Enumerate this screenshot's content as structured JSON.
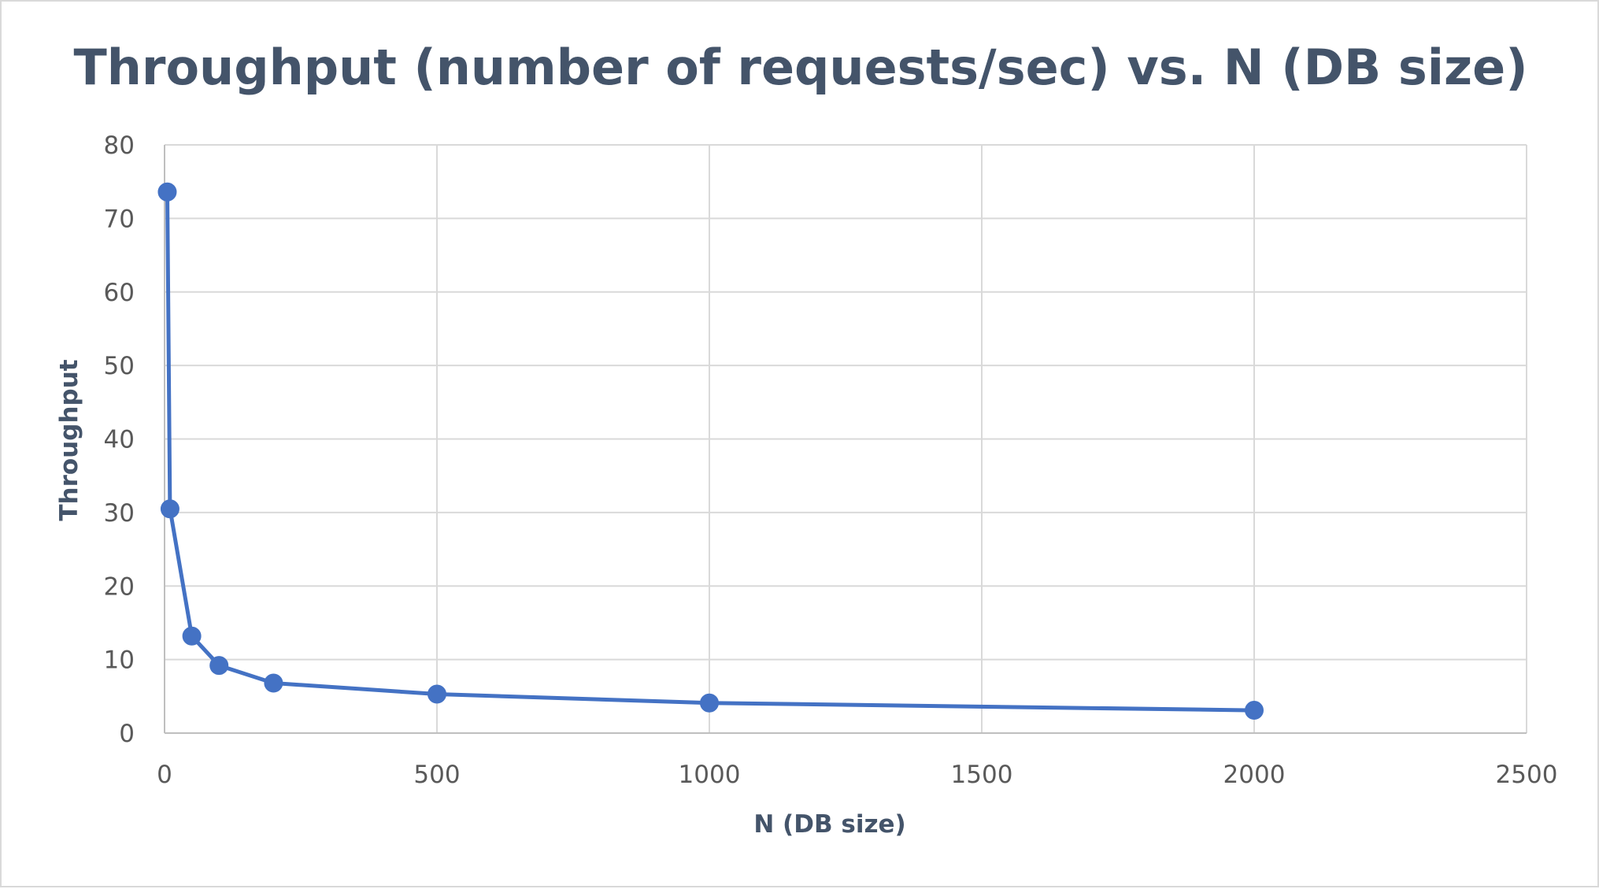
{
  "chart_data": {
    "type": "line",
    "title": "Throughput (number of requests/sec) vs. N (DB size)",
    "xlabel": "N (DB size)",
    "ylabel": "Throughput",
    "xlim": [
      0,
      2500
    ],
    "ylim": [
      0,
      80
    ],
    "x_ticks": [
      0,
      500,
      1000,
      1500,
      2000,
      2500
    ],
    "y_ticks": [
      0,
      10,
      20,
      30,
      40,
      50,
      60,
      70,
      80
    ],
    "grid": true,
    "legend": "none",
    "series": [
      {
        "color": "#4472c4",
        "marker": "circle",
        "points": [
          {
            "x": 5,
            "y": 73.6
          },
          {
            "x": 10,
            "y": 30.5
          },
          {
            "x": 50,
            "y": 13.2
          },
          {
            "x": 100,
            "y": 9.2
          },
          {
            "x": 200,
            "y": 6.8
          },
          {
            "x": 500,
            "y": 5.3
          },
          {
            "x": 1000,
            "y": 4.1
          },
          {
            "x": 2000,
            "y": 3.1
          }
        ]
      }
    ]
  }
}
